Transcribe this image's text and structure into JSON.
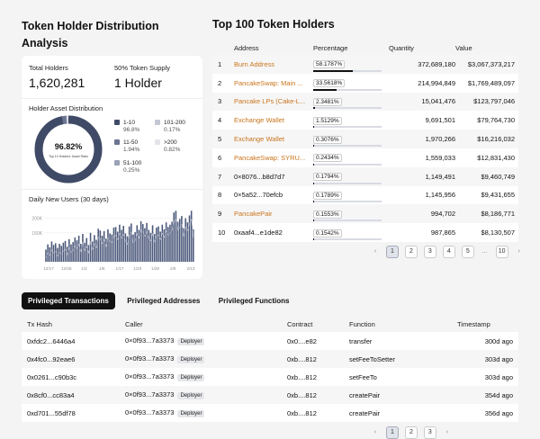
{
  "distribution": {
    "title": "Token Holder Distribution Analysis",
    "total_holders_label": "Total Holders",
    "total_holders_value": "1,620,281",
    "supply_label": "50% Token Supply",
    "supply_value": "1 Holder",
    "asset_dist_label": "Holder Asset Distribution",
    "donut_pct": "96.82%",
    "donut_caption": "Top 10 Holders' Asset Ratio",
    "legend": [
      {
        "label": "1-10",
        "pct": "96.8%",
        "color": "#3f4a66",
        "share": 96.8
      },
      {
        "label": "11-50",
        "pct": "1.94%",
        "color": "#6b7490",
        "share": 1.94
      },
      {
        "label": "51-100",
        "pct": "0.25%",
        "color": "#9aa1b6",
        "share": 0.25
      },
      {
        "label": "101-200",
        "pct": "0.17%",
        "color": "#c4c8d4",
        "share": 0.17
      },
      {
        "label": ">200",
        "pct": "0.82%",
        "color": "#e2e4ea",
        "share": 0.82
      }
    ],
    "daily_label": "Daily New Users (30 days)"
  },
  "chart_data": {
    "type": "bar",
    "title": "Daily New Users (30 days)",
    "yticks": [
      "200K",
      "150K"
    ],
    "xticks": [
      "12/17",
      "12/26",
      "1/2",
      "1/8",
      "1/17",
      "1/23",
      "1/29",
      "2/5",
      "2/13"
    ],
    "values": [
      42,
      60,
      50,
      70,
      58,
      64,
      48,
      62,
      55,
      66,
      72,
      52,
      78,
      60,
      68,
      84,
      74,
      90,
      62,
      96,
      66,
      82,
      58,
      100,
      70,
      92,
      76,
      114,
      108,
      90,
      106,
      80,
      112,
      98,
      94,
      118,
      120,
      104,
      128,
      110,
      124,
      98,
      88,
      122,
      132,
      94,
      102,
      126,
      110,
      140,
      130,
      116,
      134,
      110,
      100,
      126,
      96,
      118,
      122,
      104,
      128,
      112,
      136,
      120,
      128,
      138,
      170,
      176,
      138,
      148,
      158,
      116,
      150,
      136,
      160,
      176,
      112
    ],
    "ylim": [
      50,
      230
    ]
  },
  "holders": {
    "title": "Top 100 Token Holders",
    "columns": {
      "address": "Address",
      "percentage": "Percentage",
      "quantity": "Quantity",
      "value": "Value"
    },
    "rows": [
      {
        "rank": "1",
        "address": "Burn Address",
        "link": true,
        "pct": "58.1787%",
        "frac": 0.582,
        "quantity": "372,689,180",
        "value": "$3,067,373,217"
      },
      {
        "rank": "2",
        "address": "PancakeSwap: Main ...",
        "link": true,
        "pct": "33.5618%",
        "frac": 0.336,
        "quantity": "214,994,849",
        "value": "$1,769,489,097"
      },
      {
        "rank": "3",
        "address": "Pancake LPs (Cake-L...",
        "link": true,
        "pct": "2.3481%",
        "frac": 0.023,
        "quantity": "15,041,476",
        "value": "$123,797,046"
      },
      {
        "rank": "4",
        "address": "Exchange Wallet",
        "link": true,
        "pct": "1.5129%",
        "frac": 0.015,
        "quantity": "9,691,501",
        "value": "$79,764,730"
      },
      {
        "rank": "5",
        "address": "Exchange Wallet",
        "link": true,
        "pct": "0.3076%",
        "frac": 0.003,
        "quantity": "1,970,266",
        "value": "$16,216,032"
      },
      {
        "rank": "6",
        "address": "PancakeSwap: SYRU...",
        "link": true,
        "pct": "0.2434%",
        "frac": 0.002,
        "quantity": "1,559,033",
        "value": "$12,831,430"
      },
      {
        "rank": "7",
        "address": "0×8076...b8d7d7",
        "link": false,
        "pct": "0.1794%",
        "frac": 0.0018,
        "quantity": "1,149,491",
        "value": "$9,460,749"
      },
      {
        "rank": "8",
        "address": "0×5a52...70efcb",
        "link": false,
        "pct": "0.1789%",
        "frac": 0.0018,
        "quantity": "1,145,956",
        "value": "$9,431,655"
      },
      {
        "rank": "9",
        "address": "PancakePair",
        "link": true,
        "pct": "0.1553%",
        "frac": 0.0016,
        "quantity": "994,702",
        "value": "$8,186,771"
      },
      {
        "rank": "10",
        "address": "0xaaf4...e1de82",
        "link": false,
        "pct": "0.1542%",
        "frac": 0.0015,
        "quantity": "987,865",
        "value": "$8,130,507"
      }
    ],
    "pager": {
      "prev": "‹",
      "pages": [
        "1",
        "2",
        "3",
        "4",
        "5"
      ],
      "ellipsis": "...",
      "last": "10",
      "next": "›"
    }
  },
  "tabs": [
    "Privileged Transactions",
    "Privileged Addresses",
    "Privileged Functions"
  ],
  "transactions": {
    "columns": {
      "hash": "Tx Hash",
      "caller": "Caller",
      "contract": "Contract",
      "function": "Function",
      "timestamp": "Timestamp"
    },
    "rows": [
      {
        "hash": "0xfdc2...6446a4",
        "caller": "0×0f93...7a3373",
        "badge": "Deployer",
        "contract": "0x0....e82",
        "function": "transfer",
        "timestamp": "300d ago"
      },
      {
        "hash": "0x4fc0...92eae6",
        "caller": "0×0f93...7a3373",
        "badge": "Deployer",
        "contract": "0xb....812",
        "function": "setFeeToSetter",
        "timestamp": "303d ago"
      },
      {
        "hash": "0x0261...c90b3c",
        "caller": "0×0f93...7a3373",
        "badge": "Deployer",
        "contract": "0xb....812",
        "function": "setFeeTo",
        "timestamp": "303d ago"
      },
      {
        "hash": "0x8cf0...cc83a4",
        "caller": "0×0f93...7a3373",
        "badge": "Deployer",
        "contract": "0xb....812",
        "function": "createPair",
        "timestamp": "354d ago"
      },
      {
        "hash": "0xd701...55df78",
        "caller": "0×0f93...7a3373",
        "badge": "Deployer",
        "contract": "0xb....812",
        "function": "createPair",
        "timestamp": "356d ago"
      }
    ],
    "pager": {
      "prev": "‹",
      "pages": [
        "1",
        "2",
        "3"
      ],
      "next": "›"
    }
  }
}
